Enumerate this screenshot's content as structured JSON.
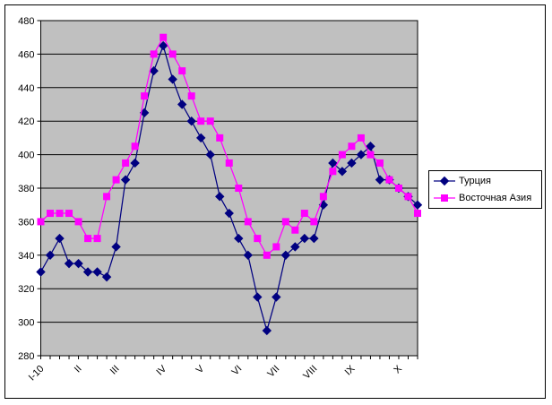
{
  "frame": {
    "background": "#ffffff",
    "border_color": "#000000"
  },
  "chart_data": {
    "type": "line",
    "title": "",
    "xlabel": "",
    "ylabel": "",
    "plot_bg": "#c0c0c0",
    "grid": true,
    "gridline_color": "#000000",
    "axis_color": "#000000",
    "ylim": [
      280,
      480
    ],
    "yticks": [
      480,
      460,
      440,
      420,
      400,
      380,
      360,
      340,
      320,
      300,
      280
    ],
    "n_points": 41,
    "x_tick_labels": [
      {
        "label": "I-10",
        "index": 0
      },
      {
        "label": "II",
        "index": 4
      },
      {
        "label": "III",
        "index": 8
      },
      {
        "label": "IV",
        "index": 13
      },
      {
        "label": "V",
        "index": 17
      },
      {
        "label": "VI",
        "index": 21
      },
      {
        "label": "VII",
        "index": 25
      },
      {
        "label": "VIII",
        "index": 29
      },
      {
        "label": "IX",
        "index": 33
      },
      {
        "label": "X",
        "index": 38
      }
    ],
    "legend_position": "right",
    "series": [
      {
        "name": "Турция",
        "color": "#000080",
        "marker": "diamond",
        "values": [
          330,
          340,
          350,
          335,
          335,
          330,
          330,
          327,
          345,
          385,
          395,
          425,
          450,
          465,
          445,
          430,
          420,
          410,
          400,
          375,
          365,
          350,
          340,
          315,
          295,
          315,
          340,
          345,
          350,
          350,
          370,
          395,
          390,
          395,
          400,
          405,
          385,
          385,
          380,
          375,
          370
        ]
      },
      {
        "name": "Восточная Азия",
        "color": "#ff00ff",
        "marker": "square",
        "values": [
          360,
          365,
          365,
          365,
          360,
          350,
          350,
          375,
          385,
          395,
          405,
          435,
          460,
          470,
          460,
          450,
          435,
          420,
          420,
          410,
          395,
          380,
          360,
          350,
          340,
          345,
          360,
          355,
          365,
          360,
          375,
          390,
          400,
          405,
          410,
          400,
          395,
          385,
          380,
          375,
          365
        ]
      }
    ]
  }
}
